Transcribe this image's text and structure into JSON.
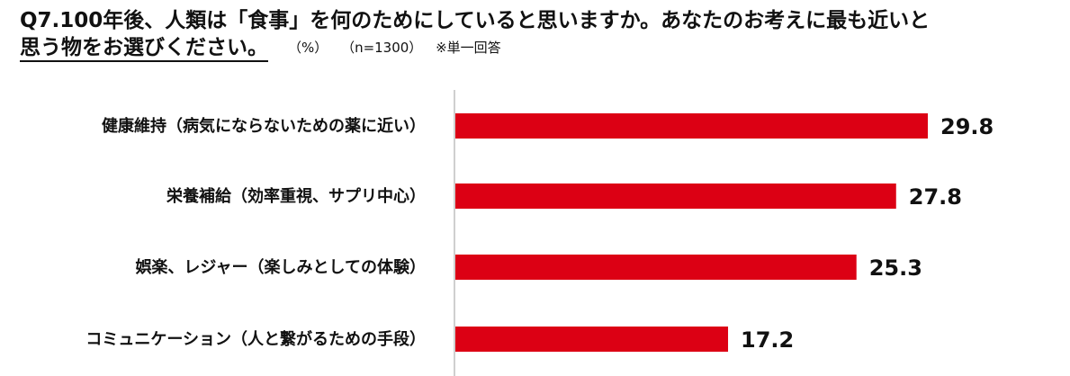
{
  "question": {
    "line1": "Q7.100年後、人類は「食事」を何のためにしていると思いますか。あなたのお考えに最も近いと",
    "line2": "思う物をお選びください。",
    "unit": "（%）",
    "sample": "（n=1300）",
    "answer_type": "※単一回答"
  },
  "colors": {
    "bar": "#DC0014",
    "axis": "#BFBFBF",
    "text": "#111111"
  },
  "chart_data": {
    "type": "bar",
    "orientation": "horizontal",
    "categories": [
      "健康維持（病気にならないための薬に近い）",
      "栄養補給（効率重視、サプリ中心）",
      "娯楽、レジャー（楽しみとしての体験）",
      "コミュニケーション（人と繋がるための手段）"
    ],
    "values": [
      29.8,
      27.8,
      25.3,
      17.2
    ],
    "value_labels": [
      "29.8",
      "27.8",
      "25.3",
      "17.2"
    ],
    "title": "",
    "xlabel": "",
    "ylabel": "",
    "xlim": [
      0,
      35
    ],
    "grid": false,
    "legend": "none"
  }
}
